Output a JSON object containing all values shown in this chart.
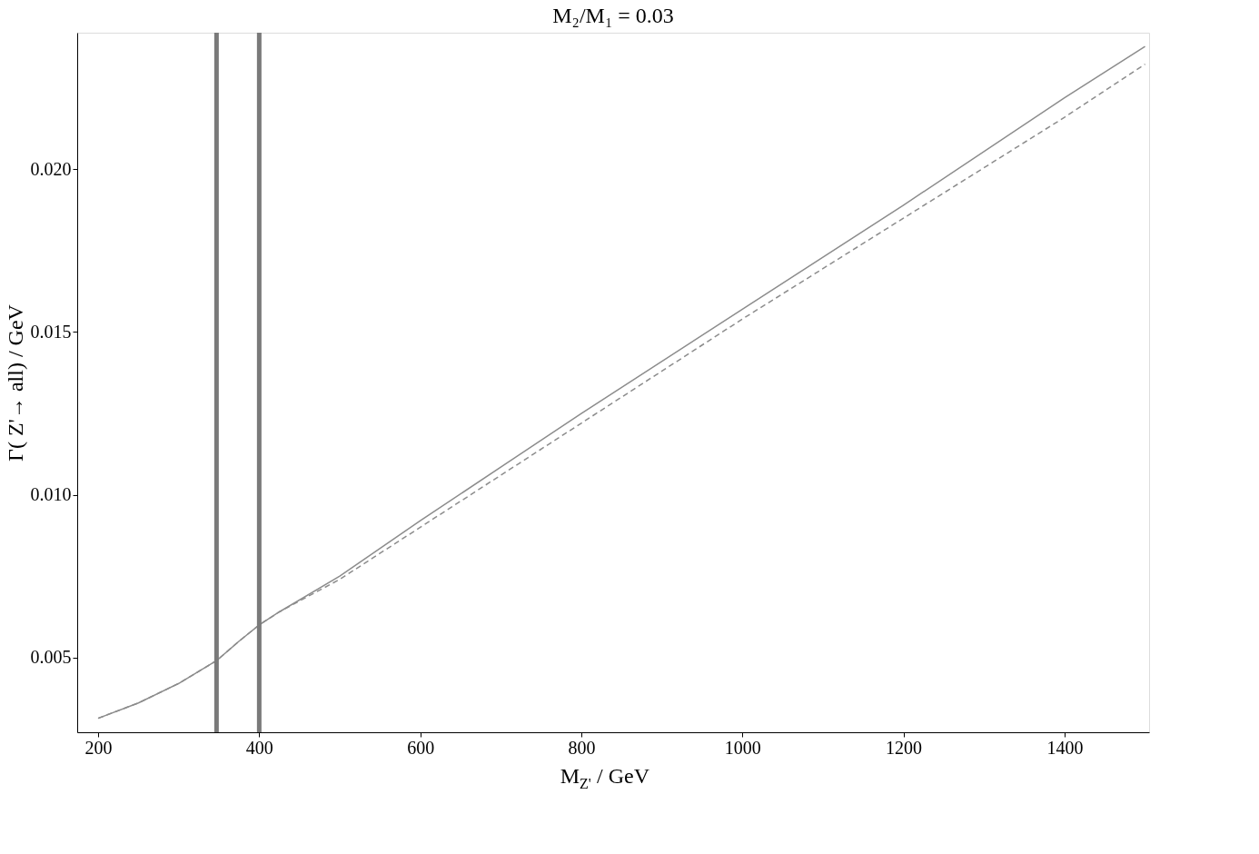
{
  "chart_data": {
    "type": "line",
    "title": "M₂/M₁ = 0.03",
    "xlabel": "M$_{Z'}$ / GeV",
    "ylabel": "Γ( Z'→ all) / GeV",
    "xlim": [
      174,
      1505
    ],
    "ylim": [
      0.0027,
      0.0242
    ],
    "xticks": [
      200,
      400,
      600,
      800,
      1000,
      1200,
      1400
    ],
    "yticks": [
      {
        "value": 0.005,
        "label": "0.005"
      },
      {
        "value": 0.01,
        "label": "0.010"
      },
      {
        "value": 0.015,
        "label": "0.015"
      },
      {
        "value": 0.02,
        "label": "0.020"
      }
    ],
    "grid": false,
    "series": [
      {
        "color": "#8c8c8c",
        "line_style": "solid",
        "x": [
          200,
          250,
          300,
          347,
          375,
          400,
          425,
          500,
          600,
          800,
          1000,
          1200,
          1400,
          1500
        ],
        "values": [
          0.00313,
          0.0036,
          0.0042,
          0.0049,
          0.0055,
          0.006,
          0.0064,
          0.0075,
          0.0092,
          0.0125,
          0.0157,
          0.0189,
          0.0222,
          0.02378
        ]
      },
      {
        "color": "#8c8c8c",
        "line_style": "dashed",
        "x": [
          200,
          250,
          300,
          347,
          375,
          400,
          425,
          500,
          600,
          800,
          1000,
          1200,
          1400,
          1500
        ],
        "values": [
          0.00313,
          0.0036,
          0.0042,
          0.0049,
          0.0055,
          0.006,
          0.0064,
          0.0074,
          0.009,
          0.0122,
          0.0154,
          0.0185,
          0.0216,
          0.02323
        ]
      }
    ],
    "ref_lines": [
      {
        "axis": "x",
        "value": 347,
        "color": "#7a7a7a"
      },
      {
        "axis": "x",
        "value": 400,
        "color": "#7a7a7a"
      }
    ]
  }
}
